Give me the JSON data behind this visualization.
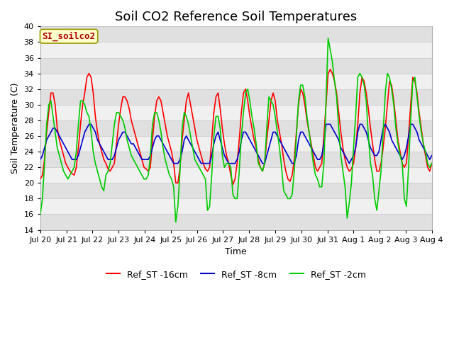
{
  "title": "Soil CO2 Reference Soil Temperatures",
  "xlabel": "Time",
  "ylabel": "Soil Temperature (C)",
  "ylim": [
    14,
    40
  ],
  "yticks": [
    14,
    16,
    18,
    20,
    22,
    24,
    26,
    28,
    30,
    32,
    34,
    36,
    38,
    40
  ],
  "annotation_label": "SI_soilco2",
  "annotation_bg": "#ffffcc",
  "annotation_fg": "#aa0000",
  "annotation_border": "#999900",
  "line_colors": {
    "Ref_ST -16cm": "#ff0000",
    "Ref_ST -8cm": "#0000cc",
    "Ref_ST -2cm": "#00cc00"
  },
  "legend_labels": [
    "Ref_ST -16cm",
    "Ref_ST -8cm",
    "Ref_ST -2cm"
  ],
  "x_tick_labels": [
    "Jul 20",
    "Jul 21",
    "Jul 22",
    "Jul 23",
    "Jul 24",
    "Jul 25",
    "Jul 26",
    "Jul 27",
    "Jul 28",
    "Jul 29",
    "Jul 30",
    "Jul 31",
    "Aug 1",
    "Aug 2",
    "Aug 3",
    "Aug 4"
  ],
  "background_color": "#ffffff",
  "plot_bg_light": "#f0f0f0",
  "plot_bg_dark": "#e0e0e0",
  "grid_color": "#cccccc",
  "title_fontsize": 13,
  "axis_fontsize": 8,
  "label_fontsize": 9,
  "ref_st_16cm": [
    20.5,
    21.0,
    23.0,
    26.5,
    29.0,
    31.5,
    31.5,
    30.0,
    27.0,
    25.5,
    24.5,
    23.5,
    22.5,
    22.0,
    21.5,
    21.2,
    21.0,
    22.0,
    24.5,
    27.5,
    30.0,
    31.5,
    33.5,
    34.0,
    33.5,
    31.5,
    28.5,
    26.5,
    25.0,
    24.0,
    23.0,
    22.5,
    21.8,
    21.5,
    22.0,
    22.5,
    25.0,
    27.5,
    29.5,
    31.0,
    31.0,
    30.5,
    29.5,
    28.0,
    27.0,
    26.0,
    25.0,
    24.0,
    23.0,
    22.0,
    21.8,
    21.5,
    22.0,
    25.5,
    28.5,
    30.5,
    31.0,
    30.5,
    29.0,
    27.5,
    26.0,
    25.0,
    24.0,
    22.5,
    20.0,
    20.0,
    22.0,
    25.5,
    28.0,
    30.5,
    31.5,
    30.0,
    28.5,
    27.0,
    25.5,
    24.5,
    23.5,
    22.5,
    21.8,
    21.5,
    22.0,
    25.5,
    29.0,
    31.0,
    31.5,
    29.5,
    27.0,
    25.0,
    23.5,
    22.5,
    21.0,
    19.8,
    20.5,
    22.5,
    25.5,
    29.0,
    31.5,
    32.0,
    30.5,
    28.5,
    27.0,
    25.5,
    24.5,
    23.0,
    22.0,
    21.5,
    22.5,
    25.5,
    28.0,
    30.5,
    31.5,
    30.5,
    28.0,
    26.5,
    25.0,
    23.0,
    21.5,
    20.5,
    20.2,
    21.0,
    23.0,
    26.5,
    30.0,
    32.0,
    31.5,
    30.0,
    28.0,
    26.5,
    25.0,
    23.5,
    22.0,
    21.5,
    22.0,
    22.5,
    26.0,
    30.0,
    34.0,
    34.5,
    34.0,
    33.0,
    31.5,
    29.0,
    26.5,
    24.5,
    23.0,
    22.0,
    21.5,
    21.8,
    22.5,
    24.5,
    27.5,
    31.5,
    33.5,
    33.0,
    31.5,
    29.5,
    27.0,
    25.0,
    23.0,
    21.5,
    21.5,
    22.5,
    24.5,
    27.0,
    30.0,
    33.0,
    32.5,
    30.5,
    28.0,
    25.5,
    24.0,
    22.5,
    22.0,
    22.5,
    26.0,
    30.0,
    33.5,
    33.0,
    31.5,
    29.0,
    27.0,
    25.0,
    23.5,
    22.0,
    21.5,
    22.5
  ],
  "ref_st_8cm": [
    23.0,
    23.5,
    24.5,
    25.5,
    26.0,
    26.5,
    27.0,
    27.0,
    26.5,
    26.0,
    25.5,
    25.0,
    24.5,
    24.0,
    23.5,
    23.0,
    23.0,
    23.0,
    23.5,
    24.5,
    25.5,
    26.5,
    27.0,
    27.5,
    27.5,
    27.0,
    26.5,
    25.5,
    25.0,
    24.5,
    24.0,
    23.5,
    23.0,
    23.0,
    23.0,
    23.5,
    24.5,
    25.5,
    26.0,
    26.5,
    26.5,
    26.0,
    25.5,
    25.0,
    25.0,
    24.5,
    24.0,
    23.5,
    23.0,
    23.0,
    23.0,
    23.0,
    23.5,
    24.5,
    25.5,
    26.0,
    26.0,
    25.5,
    25.0,
    24.5,
    24.0,
    23.5,
    23.0,
    22.5,
    22.5,
    22.5,
    23.0,
    24.0,
    25.5,
    26.0,
    25.5,
    25.0,
    24.5,
    24.0,
    23.5,
    23.0,
    22.5,
    22.5,
    22.5,
    22.5,
    22.5,
    23.5,
    25.0,
    26.0,
    26.5,
    25.5,
    24.5,
    23.5,
    23.0,
    22.5,
    22.5,
    22.5,
    22.5,
    23.0,
    24.0,
    25.5,
    26.5,
    26.5,
    26.0,
    25.5,
    25.0,
    24.5,
    24.0,
    23.5,
    23.0,
    22.5,
    22.5,
    23.5,
    24.5,
    25.5,
    26.5,
    26.5,
    26.0,
    25.5,
    25.0,
    24.5,
    24.0,
    23.5,
    23.0,
    22.5,
    22.5,
    23.5,
    25.5,
    26.5,
    26.5,
    26.0,
    25.5,
    25.0,
    24.5,
    24.0,
    23.5,
    23.0,
    23.0,
    23.5,
    25.0,
    27.5,
    27.5,
    27.5,
    27.0,
    26.5,
    26.0,
    25.5,
    24.5,
    24.0,
    23.5,
    23.0,
    22.5,
    23.0,
    23.5,
    24.5,
    26.5,
    27.5,
    27.5,
    27.0,
    26.5,
    25.5,
    24.5,
    24.0,
    23.5,
    23.5,
    24.0,
    25.5,
    27.0,
    27.5,
    27.0,
    26.5,
    25.5,
    25.0,
    24.5,
    24.0,
    23.5,
    23.0,
    23.5,
    24.5,
    26.0,
    27.5,
    27.5,
    27.0,
    26.5,
    25.5,
    25.0,
    24.5,
    24.0,
    23.5,
    23.0,
    23.5
  ],
  "ref_st_2cm": [
    16.0,
    18.0,
    22.5,
    27.5,
    30.0,
    30.5,
    28.5,
    26.5,
    24.5,
    23.5,
    22.5,
    21.5,
    21.0,
    20.5,
    21.0,
    21.5,
    22.0,
    24.0,
    27.5,
    30.5,
    30.5,
    30.0,
    29.0,
    28.5,
    26.5,
    24.0,
    22.5,
    21.5,
    20.5,
    19.5,
    19.0,
    21.0,
    21.5,
    22.5,
    25.0,
    27.5,
    29.0,
    29.0,
    28.5,
    28.0,
    27.0,
    25.5,
    24.5,
    23.5,
    23.0,
    22.5,
    22.0,
    21.5,
    21.0,
    20.5,
    20.5,
    21.0,
    23.5,
    27.5,
    29.0,
    29.0,
    28.0,
    26.5,
    24.5,
    23.0,
    22.0,
    21.0,
    20.5,
    19.5,
    15.0,
    17.0,
    21.5,
    27.0,
    29.0,
    28.5,
    27.5,
    26.0,
    24.5,
    23.0,
    22.5,
    22.0,
    21.5,
    21.0,
    20.5,
    16.5,
    17.0,
    21.0,
    26.0,
    28.5,
    28.5,
    27.0,
    23.5,
    22.0,
    22.5,
    22.5,
    22.0,
    18.5,
    18.0,
    18.0,
    21.5,
    26.0,
    29.0,
    31.5,
    32.0,
    30.5,
    28.5,
    27.0,
    25.0,
    22.5,
    22.0,
    21.5,
    22.5,
    27.0,
    31.0,
    30.5,
    30.0,
    28.5,
    26.5,
    24.5,
    22.0,
    19.0,
    18.5,
    18.0,
    18.0,
    18.5,
    21.5,
    26.0,
    30.5,
    32.5,
    32.5,
    31.0,
    28.5,
    26.5,
    24.5,
    22.5,
    21.0,
    20.5,
    19.5,
    19.5,
    22.5,
    30.5,
    38.5,
    37.0,
    35.5,
    33.0,
    31.0,
    27.0,
    23.5,
    21.5,
    19.5,
    15.5,
    17.5,
    20.0,
    24.5,
    28.5,
    33.5,
    34.0,
    33.5,
    32.5,
    30.5,
    26.0,
    22.5,
    21.0,
    18.0,
    16.5,
    19.0,
    21.5,
    26.5,
    31.5,
    34.0,
    33.5,
    32.0,
    30.0,
    27.0,
    25.0,
    23.5,
    22.5,
    18.0,
    17.0,
    22.0,
    28.0,
    33.0,
    33.5,
    31.0,
    28.5,
    26.5,
    25.0,
    24.0,
    22.5,
    22.0,
    22.5
  ]
}
